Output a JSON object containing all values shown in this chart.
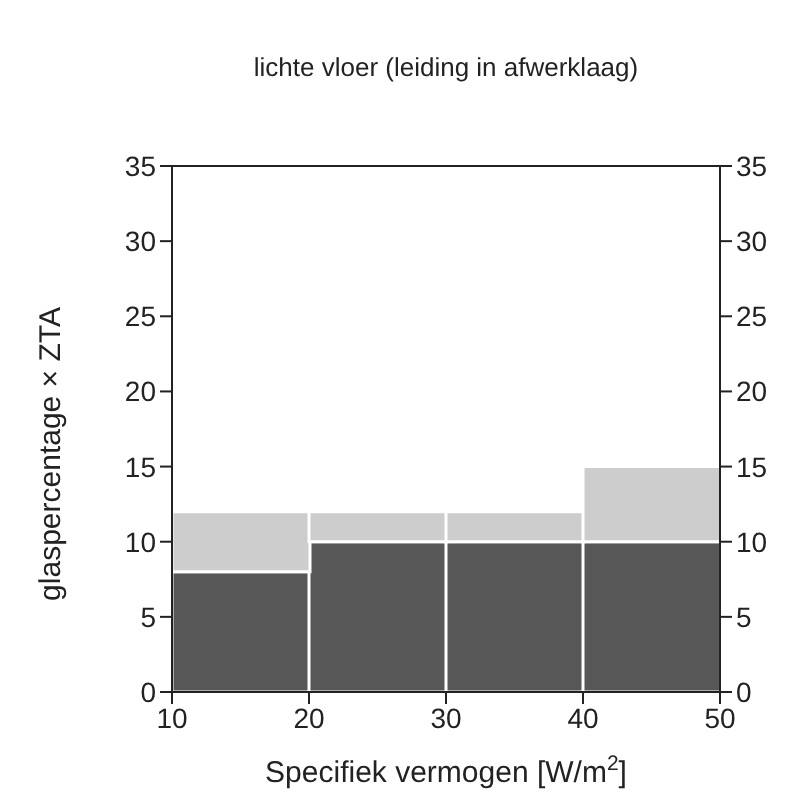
{
  "chart_data": {
    "type": "bar",
    "title": "lichte vloer (leiding in afwerklaag)",
    "xlabel": "Specifiek vermogen [W/m$^{2}$]",
    "ylabel": "glaspercentage × ZTA",
    "x": [
      15,
      25,
      35,
      45
    ],
    "stacked": true,
    "series": [
      {
        "color": "#575757",
        "values": [
          8,
          10,
          10,
          10
        ]
      },
      {
        "color": "#cdcdcd",
        "values": [
          4,
          2,
          2,
          5
        ]
      }
    ],
    "xlim": [
      10,
      50
    ],
    "xticks": [
      10,
      20,
      30,
      40,
      50
    ],
    "ylim": [
      0,
      35
    ],
    "yticks": [
      0,
      5,
      10,
      15,
      20,
      25,
      30,
      35
    ],
    "y2lim": [
      0,
      35
    ],
    "y2ticks": [
      0,
      5,
      10,
      15,
      20,
      25,
      30,
      35
    ]
  }
}
